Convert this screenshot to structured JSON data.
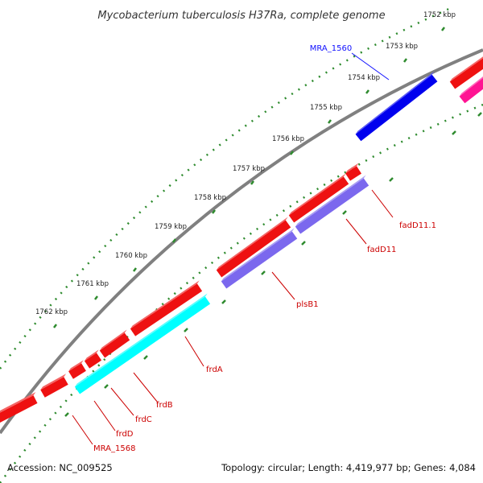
{
  "title": "Mycobacterium tuberculosis H37Ra, complete genome",
  "footer": {
    "accession": "Accession: NC_009525",
    "topology": "Topology: circular; Length: 4,419,977 bp; Genes: 4,084"
  },
  "scale_labels": [
    "1752 kbp",
    "1753 kbp",
    "1754 kbp",
    "1755 kbp",
    "1756 kbp",
    "1757 kbp",
    "1758 kbp",
    "1759 kbp",
    "1760 kbp",
    "1761 kbp",
    "1762 kbp"
  ],
  "genes": [
    {
      "name": "MRA_1560",
      "color": "#1010ff"
    },
    {
      "name": "fadD11.1",
      "color": "#cc0000"
    },
    {
      "name": "fadD11",
      "color": "#cc0000"
    },
    {
      "name": "plsB1",
      "color": "#cc0000"
    },
    {
      "name": "frdA",
      "color": "#cc0000"
    },
    {
      "name": "frdB",
      "color": "#cc0000"
    },
    {
      "name": "frdC",
      "color": "#cc0000"
    },
    {
      "name": "frdD",
      "color": "#cc0000"
    },
    {
      "name": "MRA_1568",
      "color": "#cc0000"
    }
  ],
  "colors": {
    "cds": "#ee1111",
    "cds_top": "#ff6666",
    "pink": "#ff1493",
    "lavender": "#7b68ee",
    "cyan": "#00ffff",
    "blue": "#0000ee",
    "backbone": "#808080",
    "tick": "#2e8b2e"
  }
}
